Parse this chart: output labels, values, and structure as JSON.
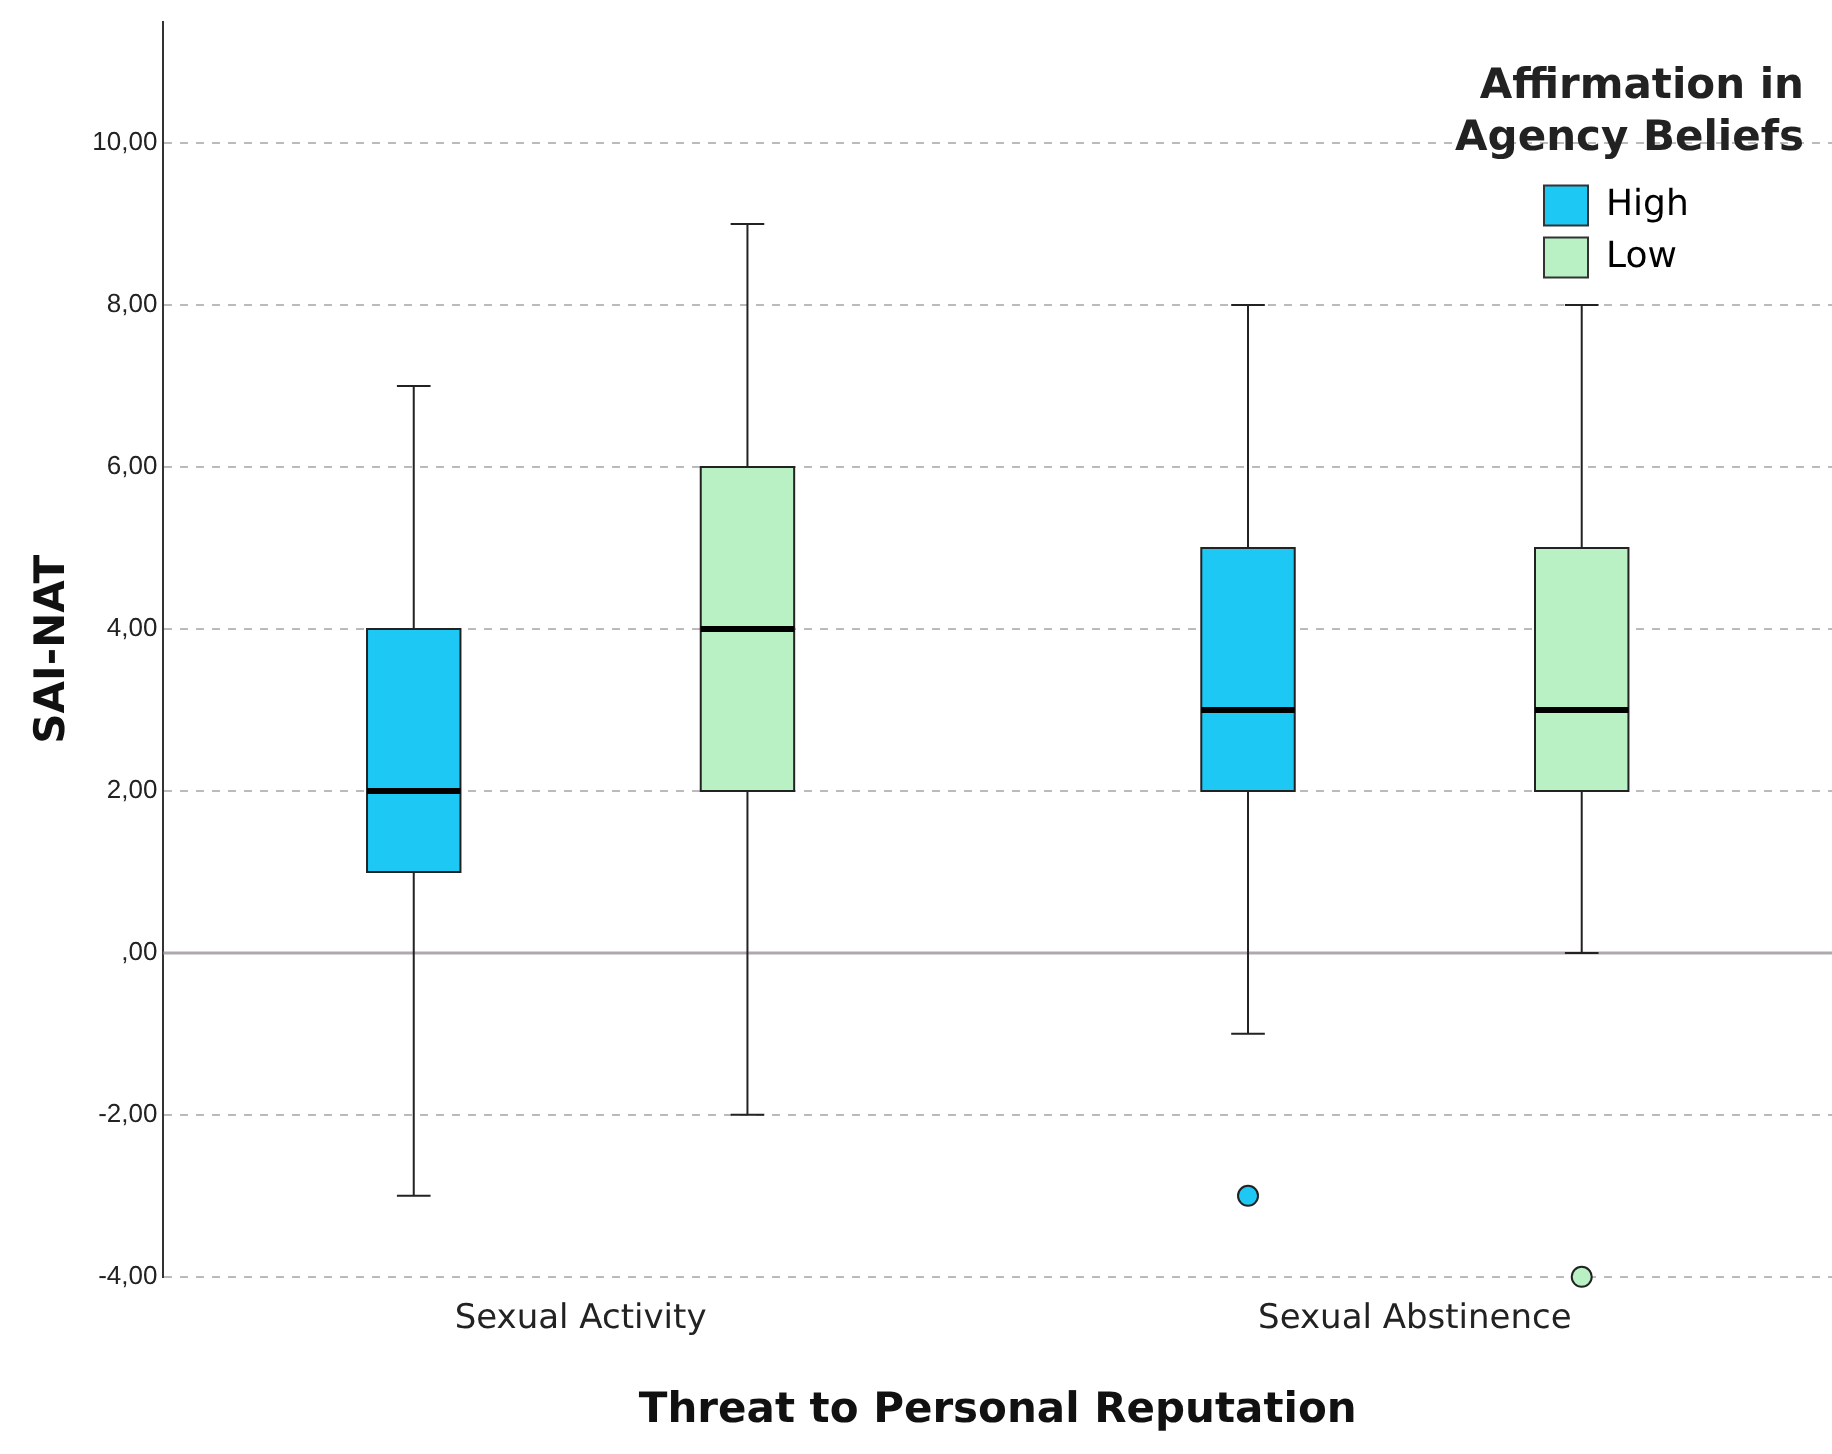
{
  "chart_data": {
    "type": "box",
    "xlabel": "Threat to Personal Reputation",
    "ylabel": "SAI-NAT",
    "legend_title": "Affirmation in Agency Beliefs",
    "categories": [
      "Sexual Activity",
      "Sexual Abstinence"
    ],
    "series": [
      {
        "name": "High",
        "color": "#1ec8f5",
        "boxes": [
          {
            "low": -3,
            "q1": 1,
            "median": 2,
            "q3": 4,
            "high": 7
          },
          {
            "low": -1,
            "q1": 2,
            "median": 3,
            "q3": 5,
            "high": 8,
            "outliers": [
              -3
            ]
          }
        ]
      },
      {
        "name": "Low",
        "color": "#b9f0c4",
        "boxes": [
          {
            "low": -2,
            "q1": 2,
            "median": 4,
            "q3": 6,
            "high": 9
          },
          {
            "low": 0,
            "q1": 2,
            "median": 3,
            "q3": 5,
            "high": 8,
            "outliers": [
              -4
            ]
          }
        ]
      }
    ],
    "ylim": [
      -4,
      11.5
    ],
    "yticks": [
      {
        "value": -4,
        "label": "-4,00"
      },
      {
        "value": -2,
        "label": "-2,00"
      },
      {
        "value": 0,
        "label": ",00"
      },
      {
        "value": 2,
        "label": "2,00"
      },
      {
        "value": 4,
        "label": "4,00"
      },
      {
        "value": 6,
        "label": "6,00"
      },
      {
        "value": 8,
        "label": "8,00"
      },
      {
        "value": 10,
        "label": "10,00"
      }
    ],
    "ref_lines": [
      {
        "axis": "y",
        "value": 0,
        "color": "#b0a8b0"
      }
    ],
    "grid": "y",
    "legend": "top right"
  }
}
